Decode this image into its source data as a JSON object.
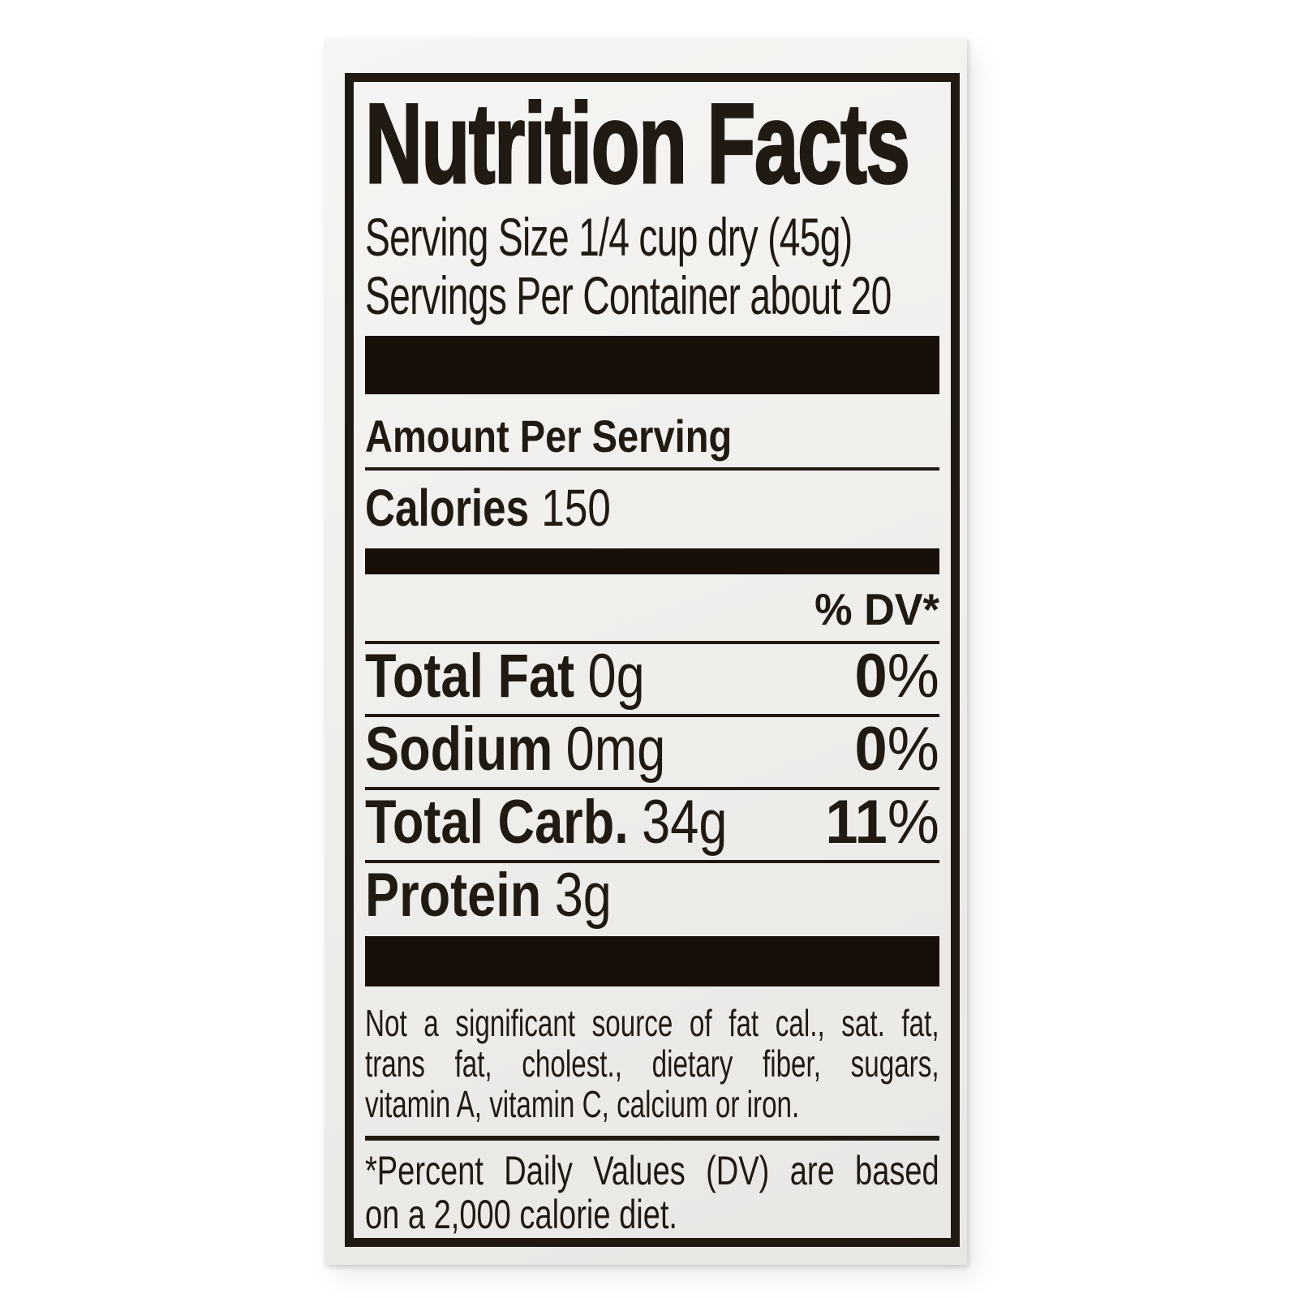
{
  "label": {
    "title": "Nutrition Facts",
    "serving_size_line": "Serving Size 1/4 cup dry (45g)",
    "servings_line": "Servings Per Container about 20",
    "amount_per_serving": "Amount Per Serving",
    "calories": {
      "label": "Calories",
      "value": "150"
    },
    "dv_header": "% DV*",
    "percent_sign": "%",
    "nutrients": [
      {
        "name": "Total Fat",
        "amount": "0g",
        "dv": "0"
      },
      {
        "name": "Sodium",
        "amount": "0mg",
        "dv": "0"
      },
      {
        "name": "Total Carb.",
        "amount": "34g",
        "dv": "11"
      },
      {
        "name": "Protein",
        "amount": "3g"
      }
    ],
    "disclaimer_lines": [
      "Not a significant source of fat cal., sat. fat,",
      "trans fat, cholest., dietary fiber, sugars,",
      "vitamin A, vitamin C, calcium or iron."
    ],
    "footnote_lines": [
      "*Percent Daily Values (DV) are based",
      "on a 2,000 calorie diet."
    ],
    "colors": {
      "ink": "#211a12",
      "paper": "#f0efec",
      "page": "#ffffff"
    }
  }
}
